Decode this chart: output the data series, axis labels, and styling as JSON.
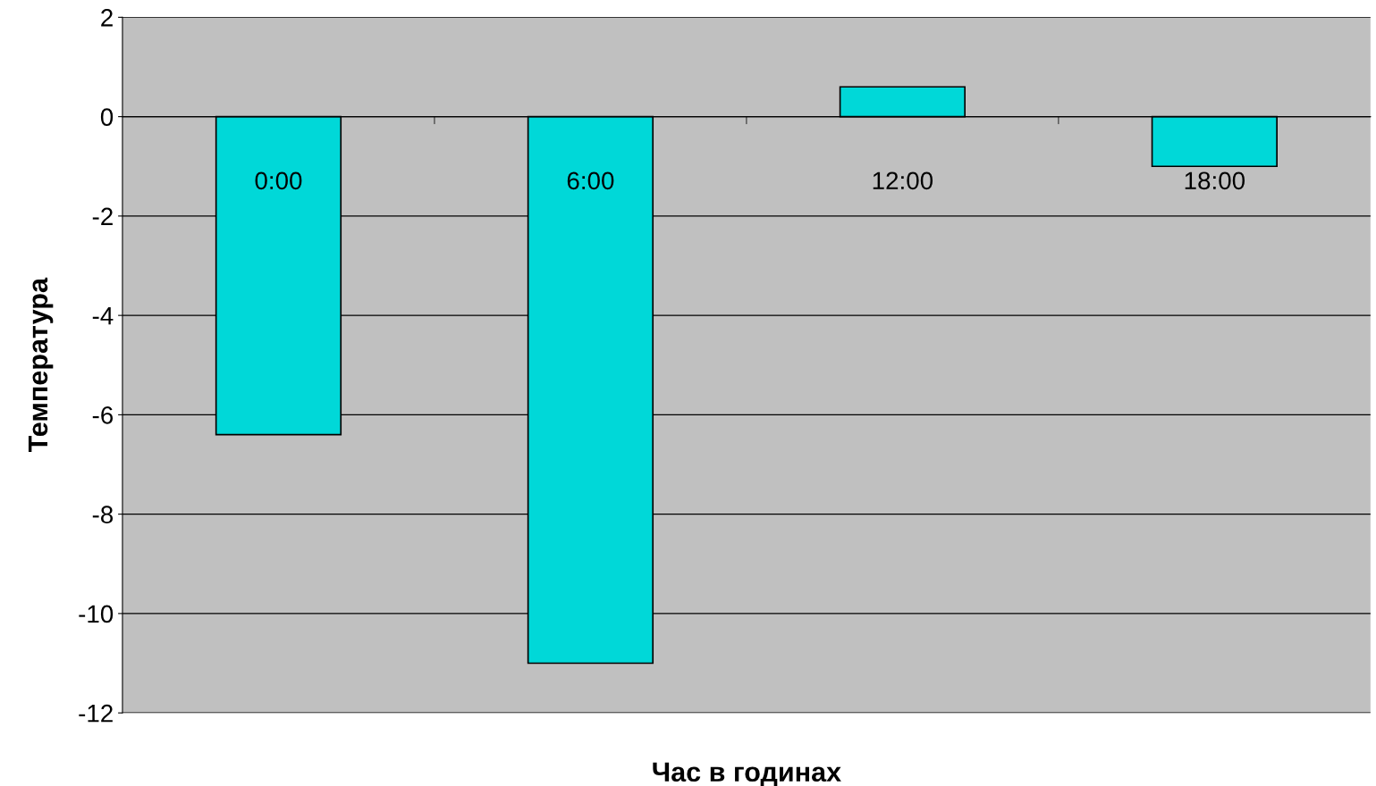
{
  "chart_data": {
    "type": "bar",
    "xlabel": "Час в годинах",
    "ylabel": "Температура",
    "categories": [
      "0:00",
      "6:00",
      "12:00",
      "18:00"
    ],
    "values": [
      -6.4,
      -11,
      0.6,
      -1.0
    ],
    "color": "#00d8d8",
    "ylim": [
      -12,
      2
    ],
    "yticks": [
      -12,
      -10,
      -8,
      -6,
      -4,
      -2,
      0,
      2
    ],
    "grid": "y",
    "legend": false
  }
}
